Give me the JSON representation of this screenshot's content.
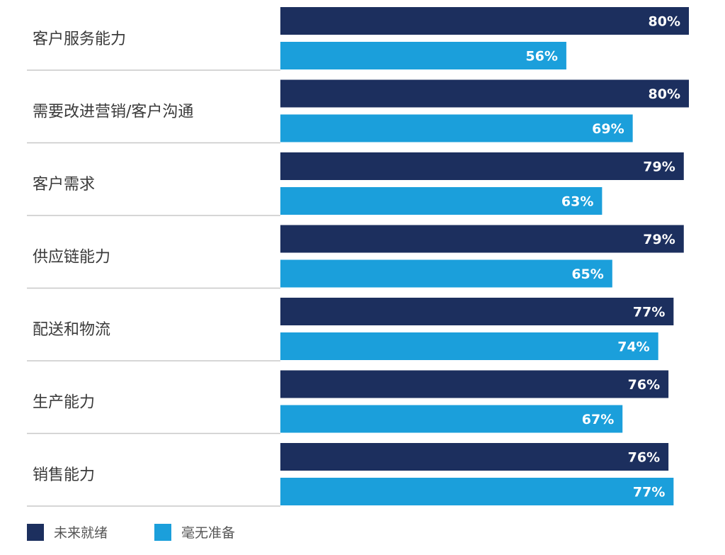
{
  "chart_data": {
    "type": "bar",
    "orientation": "horizontal",
    "categories": [
      "客户服务能力",
      "需要改进营销/客户沟通",
      "客户需求",
      "供应链能力",
      "配送和物流",
      "生产能力",
      "销售能力"
    ],
    "series": [
      {
        "name": "未来就绪",
        "values": [
          80,
          80,
          79,
          79,
          77,
          76,
          76
        ],
        "labels": [
          "80%",
          "80%",
          "79%",
          "79%",
          "77%",
          "76%",
          "76%"
        ],
        "color": "#1c2f5e"
      },
      {
        "name": "毫无准备",
        "values": [
          56,
          69,
          63,
          65,
          74,
          67,
          77
        ],
        "labels": [
          "56%",
          "69%",
          "63%",
          "65%",
          "74%",
          "67%",
          "77%"
        ],
        "color": "#1b9fdb"
      }
    ],
    "xlim": [
      0,
      80
    ],
    "legend_position": "bottom-left",
    "grid": false
  }
}
